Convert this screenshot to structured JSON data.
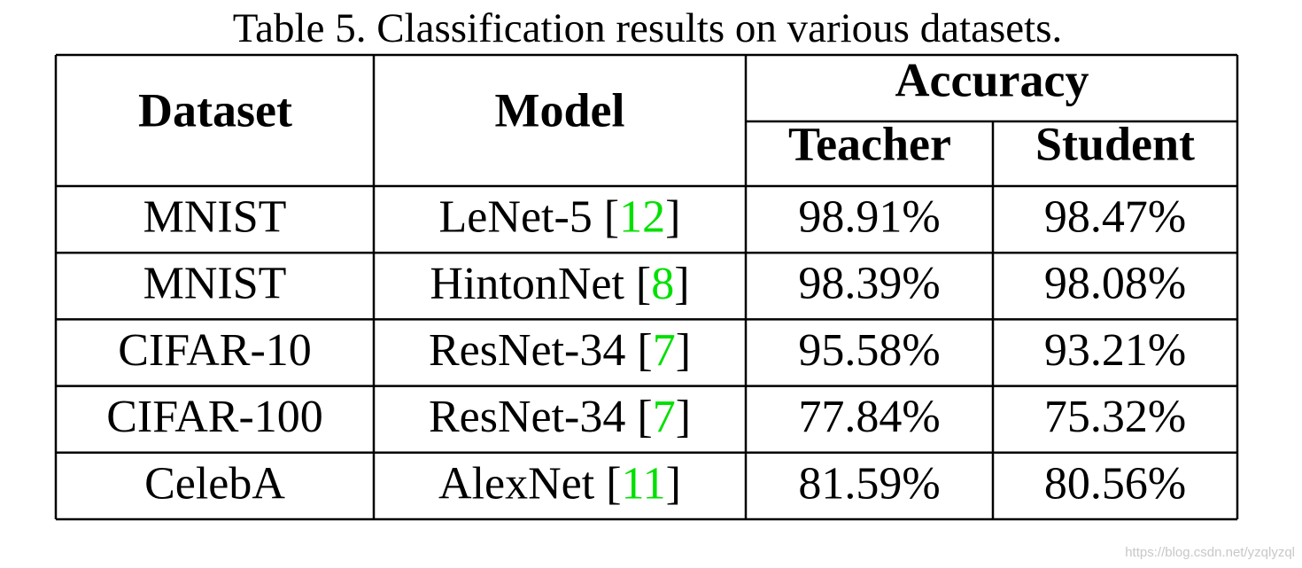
{
  "caption": "Table 5. Classification results on various datasets.",
  "table": {
    "headers": {
      "dataset": "Dataset",
      "model": "Model",
      "accuracy": "Accuracy",
      "teacher": "Teacher",
      "student": "Student"
    },
    "rows": [
      {
        "dataset": "MNIST",
        "model": [
          "LeNet-5 [",
          "12",
          "]"
        ],
        "teacher": "98.91%",
        "student": "98.47%"
      },
      {
        "dataset": "MNIST",
        "model": [
          "HintonNet [",
          "8",
          "]"
        ],
        "teacher": "98.39%",
        "student": "98.08%"
      },
      {
        "dataset": "CIFAR-10",
        "model": [
          "ResNet-34 [",
          "7",
          "]"
        ],
        "teacher": "95.58%",
        "student": "93.21%"
      },
      {
        "dataset": "CIFAR-100",
        "model": [
          "ResNet-34 [",
          "7",
          "]"
        ],
        "teacher": "77.84%",
        "student": "75.32%"
      },
      {
        "dataset": "CelebA",
        "model": [
          "AlexNet [",
          "11",
          "]"
        ],
        "teacher": "81.59%",
        "student": "80.56%"
      }
    ]
  },
  "watermark": "https://blog.csdn.net/yzqlyzql"
}
